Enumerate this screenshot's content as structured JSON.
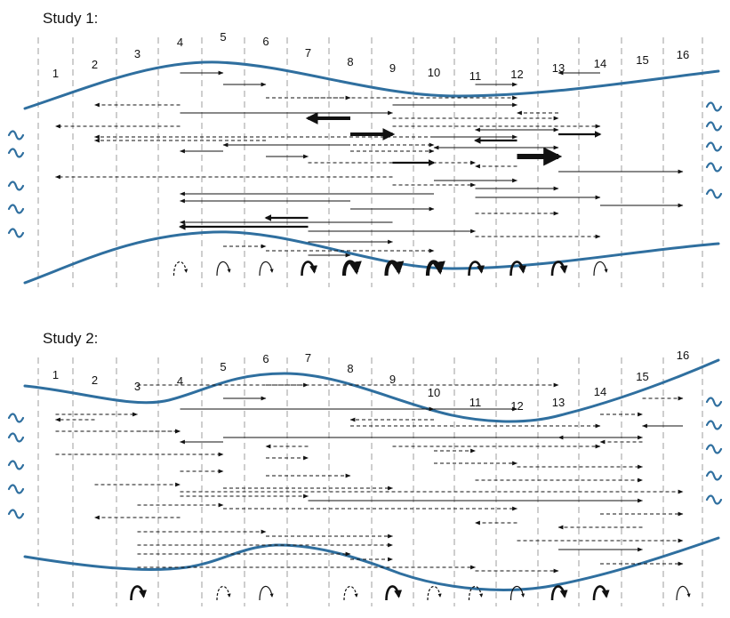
{
  "colors": {
    "wall": "#2f6f9f",
    "wave": "#2f6f9f",
    "arrow": "#111111",
    "divider": "#b3b3b3"
  },
  "panels": [
    {
      "title": "Study 1:",
      "segment_labels": [
        "1",
        "2",
        "3",
        "4",
        "5",
        "6",
        "7",
        "8",
        "9",
        "10",
        "11",
        "12",
        "13",
        "14",
        "15",
        "16"
      ],
      "wave_glyph_count_left": 5,
      "wave_glyph_count_right": 5,
      "movements": [
        {
          "from": 4,
          "to": 5,
          "style": "solid",
          "weight": 1
        },
        {
          "from": 5,
          "to": 6,
          "style": "solid",
          "weight": 1
        },
        {
          "from": 6,
          "to": 8,
          "style": "dashed",
          "weight": 1
        },
        {
          "from": 4,
          "to": 2,
          "style": "dashed",
          "weight": 1
        },
        {
          "from": 4,
          "to": 9,
          "style": "solid",
          "weight": 1
        },
        {
          "from": 9,
          "to": 13,
          "style": "dashed",
          "weight": 1
        },
        {
          "from": 4,
          "to": 1,
          "style": "dashed",
          "weight": 1
        },
        {
          "from": 11,
          "to": 13,
          "style": "solid",
          "weight": 1
        },
        {
          "from": 8,
          "to": 9,
          "style": "solid",
          "weight": 3
        },
        {
          "from": 10,
          "to": 12,
          "style": "solid",
          "weight": 1
        },
        {
          "from": 6,
          "to": 2,
          "style": "dashed",
          "weight": 1
        },
        {
          "from": 8,
          "to": 5,
          "style": "solid",
          "weight": 1
        },
        {
          "from": 11,
          "to": 13,
          "style": "solid",
          "weight": 1
        },
        {
          "from": 5,
          "to": 4,
          "style": "solid",
          "weight": 1
        },
        {
          "from": 6,
          "to": 7,
          "style": "solid",
          "weight": 1
        },
        {
          "from": 7,
          "to": 11,
          "style": "dashed",
          "weight": 1
        },
        {
          "from": 12,
          "to": 11,
          "style": "dashed",
          "weight": 1
        },
        {
          "from": 13,
          "to": 16,
          "style": "solid",
          "weight": 1
        },
        {
          "from": 9,
          "to": 1,
          "style": "dashed",
          "weight": 1
        },
        {
          "from": 10,
          "to": 12,
          "style": "solid",
          "weight": 1
        },
        {
          "from": 9,
          "to": 11,
          "style": "dashed",
          "weight": 1
        },
        {
          "from": 11,
          "to": 13,
          "style": "solid",
          "weight": 1
        },
        {
          "from": 10,
          "to": 4,
          "style": "solid",
          "weight": 1
        },
        {
          "from": 11,
          "to": 14,
          "style": "solid",
          "weight": 1
        },
        {
          "from": 8,
          "to": 4,
          "style": "solid",
          "weight": 1
        },
        {
          "from": 14,
          "to": 16,
          "style": "solid",
          "weight": 1
        },
        {
          "from": 8,
          "to": 10,
          "style": "solid",
          "weight": 1
        },
        {
          "from": 11,
          "to": 13,
          "style": "dashed",
          "weight": 1
        },
        {
          "from": 7,
          "to": 6,
          "style": "solid",
          "weight": 2
        },
        {
          "from": 9,
          "to": 4,
          "style": "solid",
          "weight": 1
        },
        {
          "from": 7,
          "to": 4,
          "style": "solid",
          "weight": 2
        },
        {
          "from": 7,
          "to": 11,
          "style": "solid",
          "weight": 1
        },
        {
          "from": 11,
          "to": 14,
          "style": "dashed",
          "weight": 1
        },
        {
          "from": 7,
          "to": 9,
          "style": "solid",
          "weight": 1
        },
        {
          "from": 5,
          "to": 6,
          "style": "dashed",
          "weight": 1
        },
        {
          "from": 6,
          "to": 10,
          "style": "dashed",
          "weight": 1
        },
        {
          "from": 7,
          "to": 8,
          "style": "solid",
          "weight": 1
        },
        {
          "from": 14,
          "to": 13,
          "style": "solid",
          "weight": 1
        },
        {
          "from": 11,
          "to": 12,
          "style": "solid",
          "weight": 1
        },
        {
          "from": 7,
          "to": 12,
          "style": "dashed",
          "weight": 1
        },
        {
          "from": 9,
          "to": 12,
          "style": "solid",
          "weight": 1
        },
        {
          "from": 13,
          "to": 12,
          "style": "dashed",
          "weight": 1
        },
        {
          "from": 8,
          "to": 7,
          "style": "solid",
          "weight": 3
        },
        {
          "from": 9,
          "to": 14,
          "style": "dashed",
          "weight": 1
        },
        {
          "from": 12,
          "to": 11,
          "style": "dashed",
          "weight": 1
        },
        {
          "from": 13,
          "to": 14,
          "style": "solid",
          "weight": 2
        },
        {
          "from": 10,
          "to": 2,
          "style": "dashed",
          "weight": 1
        },
        {
          "from": 12,
          "to": 11,
          "style": "solid",
          "weight": 2
        },
        {
          "from": 6,
          "to": 10,
          "style": "dashed",
          "weight": 1
        },
        {
          "from": 11,
          "to": 10,
          "style": "solid",
          "weight": 1
        },
        {
          "from": 8,
          "to": 10,
          "style": "dashed",
          "weight": 1
        },
        {
          "from": 12,
          "to": 13,
          "style": "solid",
          "weight": 4
        },
        {
          "from": 9,
          "to": 10,
          "style": "solid",
          "weight": 2
        }
      ],
      "returns": [
        {
          "segment": 4,
          "style": "dashed",
          "weight": 1
        },
        {
          "segment": 5,
          "style": "solid",
          "weight": 1
        },
        {
          "segment": 6,
          "style": "solid",
          "weight": 1
        },
        {
          "segment": 7,
          "style": "solid",
          "weight": 2
        },
        {
          "segment": 8,
          "style": "solid",
          "weight": 3
        },
        {
          "segment": 9,
          "style": "solid",
          "weight": 3
        },
        {
          "segment": 10,
          "style": "solid",
          "weight": 3
        },
        {
          "segment": 11,
          "style": "solid",
          "weight": 2
        },
        {
          "segment": 12,
          "style": "solid",
          "weight": 2
        },
        {
          "segment": 13,
          "style": "solid",
          "weight": 2
        },
        {
          "segment": 14,
          "style": "solid",
          "weight": 1
        }
      ]
    },
    {
      "title": "Study 2:",
      "segment_labels": [
        "1",
        "2",
        "3",
        "4",
        "5",
        "6",
        "7",
        "8",
        "9",
        "10",
        "11",
        "12",
        "13",
        "14",
        "15",
        "16"
      ],
      "wave_glyph_count_left": 5,
      "wave_glyph_count_right": 5,
      "movements": [
        {
          "from": 6,
          "to": 7,
          "style": "dashed",
          "weight": 1
        },
        {
          "from": 5,
          "to": 6,
          "style": "solid",
          "weight": 1
        },
        {
          "from": 4,
          "to": 10,
          "style": "dashed",
          "weight": 1
        },
        {
          "from": 1,
          "to": 3,
          "style": "dashed",
          "weight": 1
        },
        {
          "from": 10,
          "to": 8,
          "style": "dashed",
          "weight": 1
        },
        {
          "from": 16,
          "to": 15,
          "style": "solid",
          "weight": 1
        },
        {
          "from": 1,
          "to": 4,
          "style": "dashed",
          "weight": 1
        },
        {
          "from": 5,
          "to": 15,
          "style": "solid",
          "weight": 1
        },
        {
          "from": 5,
          "to": 4,
          "style": "solid",
          "weight": 1
        },
        {
          "from": 7,
          "to": 6,
          "style": "dashed",
          "weight": 1
        },
        {
          "from": 10,
          "to": 11,
          "style": "dashed",
          "weight": 1
        },
        {
          "from": 1,
          "to": 5,
          "style": "dashed",
          "weight": 1
        },
        {
          "from": 6,
          "to": 7,
          "style": "dashed",
          "weight": 1
        },
        {
          "from": 10,
          "to": 12,
          "style": "dashed",
          "weight": 1
        },
        {
          "from": 12,
          "to": 15,
          "style": "dashed",
          "weight": 1
        },
        {
          "from": 4,
          "to": 5,
          "style": "dashed",
          "weight": 1
        },
        {
          "from": 6,
          "to": 8,
          "style": "dashed",
          "weight": 1
        },
        {
          "from": 11,
          "to": 15,
          "style": "dashed",
          "weight": 1
        },
        {
          "from": 2,
          "to": 4,
          "style": "dashed",
          "weight": 1
        },
        {
          "from": 5,
          "to": 9,
          "style": "dashed",
          "weight": 1
        },
        {
          "from": 4,
          "to": 16,
          "style": "dashed",
          "weight": 1
        },
        {
          "from": 4,
          "to": 7,
          "style": "dashed",
          "weight": 1
        },
        {
          "from": 7,
          "to": 15,
          "style": "solid",
          "weight": 1
        },
        {
          "from": 3,
          "to": 5,
          "style": "dashed",
          "weight": 1
        },
        {
          "from": 5,
          "to": 12,
          "style": "dashed",
          "weight": 1
        },
        {
          "from": 14,
          "to": 16,
          "style": "dashed",
          "weight": 1
        },
        {
          "from": 4,
          "to": 2,
          "style": "dashed",
          "weight": 1
        },
        {
          "from": 12,
          "to": 11,
          "style": "dashed",
          "weight": 1
        },
        {
          "from": 15,
          "to": 13,
          "style": "dashed",
          "weight": 1
        },
        {
          "from": 3,
          "to": 6,
          "style": "dashed",
          "weight": 1
        },
        {
          "from": 6,
          "to": 9,
          "style": "dashed",
          "weight": 1
        },
        {
          "from": 12,
          "to": 16,
          "style": "dashed",
          "weight": 1
        },
        {
          "from": 3,
          "to": 9,
          "style": "dashed",
          "weight": 1
        },
        {
          "from": 13,
          "to": 15,
          "style": "solid",
          "weight": 1
        },
        {
          "from": 3,
          "to": 8,
          "style": "dashed",
          "weight": 1
        },
        {
          "from": 8,
          "to": 9,
          "style": "dashed",
          "weight": 1
        },
        {
          "from": 14,
          "to": 16,
          "style": "dashed",
          "weight": 1
        },
        {
          "from": 3,
          "to": 11,
          "style": "dashed",
          "weight": 1
        },
        {
          "from": 11,
          "to": 13,
          "style": "dashed",
          "weight": 1
        },
        {
          "from": 3,
          "to": 13,
          "style": "dashed",
          "weight": 1
        },
        {
          "from": 15,
          "to": 16,
          "style": "dashed",
          "weight": 1
        },
        {
          "from": 4,
          "to": 12,
          "style": "solid",
          "weight": 1
        },
        {
          "from": 14,
          "to": 15,
          "style": "dashed",
          "weight": 1
        },
        {
          "from": 2,
          "to": 1,
          "style": "dashed",
          "weight": 1
        },
        {
          "from": 8,
          "to": 14,
          "style": "dashed",
          "weight": 1
        },
        {
          "from": 3,
          "to": 4,
          "style": "dashed",
          "weight": 1
        },
        {
          "from": 14,
          "to": 13,
          "style": "dashed",
          "weight": 1
        },
        {
          "from": 15,
          "to": 14,
          "style": "dashed",
          "weight": 1
        },
        {
          "from": 9,
          "to": 14,
          "style": "dashed",
          "weight": 1
        }
      ],
      "returns": [
        {
          "segment": 3,
          "style": "solid",
          "weight": 2
        },
        {
          "segment": 5,
          "style": "dashed",
          "weight": 1
        },
        {
          "segment": 6,
          "style": "solid",
          "weight": 1
        },
        {
          "segment": 8,
          "style": "dashed",
          "weight": 1
        },
        {
          "segment": 9,
          "style": "solid",
          "weight": 2
        },
        {
          "segment": 10,
          "style": "dashed",
          "weight": 1
        },
        {
          "segment": 11,
          "style": "dashed",
          "weight": 1
        },
        {
          "segment": 12,
          "style": "solid",
          "weight": 1
        },
        {
          "segment": 13,
          "style": "solid",
          "weight": 2
        },
        {
          "segment": 14,
          "style": "solid",
          "weight": 2
        },
        {
          "segment": 16,
          "style": "solid",
          "weight": 1
        }
      ]
    }
  ]
}
